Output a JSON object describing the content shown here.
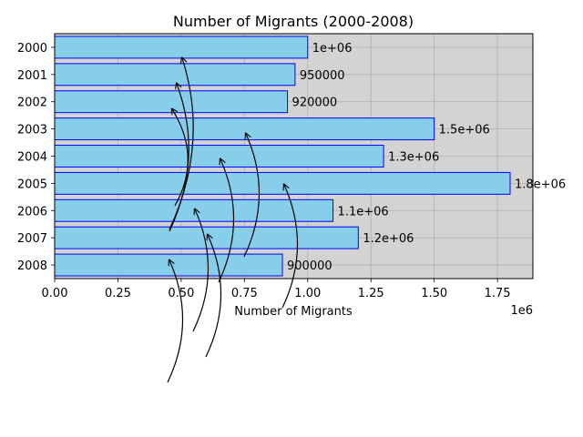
{
  "chart_data": {
    "type": "bar",
    "orientation": "horizontal",
    "title": "Number of Migrants (2000-2008)",
    "xlabel": "Number of Migrants",
    "ylabel": "",
    "x_offset_label": "1e6",
    "categories": [
      "2000",
      "2001",
      "2002",
      "2003",
      "2004",
      "2005",
      "2006",
      "2007",
      "2008"
    ],
    "values": [
      1000000,
      950000,
      920000,
      1500000,
      1300000,
      1800000,
      1100000,
      1200000,
      900000
    ],
    "data_labels": [
      "1e+06",
      "950000",
      "920000",
      "1.5e+06",
      "1.3e+06",
      "1.8e+06",
      "1.1e+06",
      "1.2e+06",
      "900000"
    ],
    "xlim": [
      0,
      1890000
    ],
    "x_ticks": [
      0,
      250000,
      500000,
      750000,
      1000000,
      1250000,
      1500000,
      1750000
    ],
    "x_tick_labels": [
      "0.00",
      "0.25",
      "0.50",
      "0.75",
      "1.00",
      "1.25",
      "1.50",
      "1.75"
    ],
    "grid": true,
    "colors": {
      "bar_fill": "#87ceeb",
      "bar_edge": "#0000ff",
      "plot_background": "#d3d3d3",
      "grid": "#b0b0b0",
      "arrow": "#000000"
    }
  }
}
